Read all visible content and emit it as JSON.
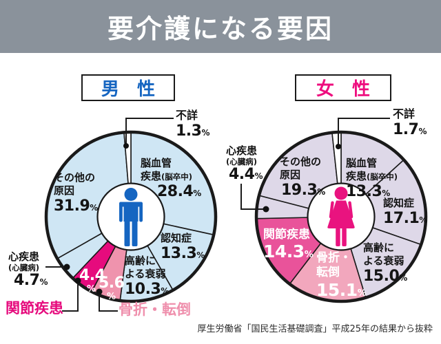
{
  "page": {
    "title": "要介護になる要因",
    "source": "厚生労働省「国民生活基礎調査」平成25年の結果から抜粋",
    "unit": "%"
  },
  "male": {
    "header": "男　性"
  },
  "female": {
    "header": "女　性"
  },
  "colors": {
    "banner_gray": "#8a929b",
    "male_accent": "#1565c1",
    "female_accent": "#ee0d7e",
    "male_slice": "#cfe6f4",
    "female_slice": "#ded8e8",
    "male_joint_highlight": "#e60b7d",
    "male_fracture_highlight": "#ef93ad",
    "female_joint_highlight": "#e9539a",
    "female_fracture_highlight": "#f2a7bd",
    "outline": "#1a1a1a"
  },
  "chart_data": [
    {
      "type": "pie",
      "title": "男性",
      "donut": true,
      "start_angle": "top",
      "direction": "clockwise",
      "unit": "%",
      "segments": [
        {
          "label": "脳血管疾患(脳卒中)",
          "label_lines": "脳血管\n疾患",
          "label_paren": "(脳卒中)",
          "value": 28.4,
          "value_str": "28.4",
          "color": "#cfe6f4"
        },
        {
          "label": "認知症",
          "label_lines": "認知症",
          "value": 13.3,
          "value_str": "13.3",
          "color": "#cfe6f4"
        },
        {
          "label": "高齢による衰弱",
          "label_lines": "高齢に\nよる衰弱",
          "value": 10.3,
          "value_str": "10.3",
          "color": "#cfe6f4"
        },
        {
          "label": "骨折・転倒",
          "label_lines": "骨折・転倒",
          "value": 5.6,
          "value_str": "5.6",
          "color": "#ef93ad"
        },
        {
          "label": "関節疾患",
          "label_lines": "関節疾患",
          "value": 4.4,
          "value_str": "4.4",
          "color": "#e60b7d"
        },
        {
          "label": "心疾患(心臓病)",
          "label_lines": "心疾患",
          "label_paren": "(心臓病)",
          "value": 4.7,
          "value_str": "4.7",
          "color": "#cfe6f4"
        },
        {
          "label": "その他の原因",
          "label_lines": "その他の\n原因",
          "value": 31.9,
          "value_str": "31.9",
          "color": "#cfe6f4"
        },
        {
          "label": "不詳",
          "label_lines": "不詳",
          "value": 1.3,
          "value_str": "1.3",
          "color": "#ffffff"
        }
      ]
    },
    {
      "type": "pie",
      "title": "女性",
      "donut": true,
      "start_angle": "top",
      "direction": "clockwise",
      "unit": "%",
      "segments": [
        {
          "label": "脳血管疾患(脳卒中)",
          "label_lines": "脳血管\n疾患",
          "label_paren": "(脳卒中)",
          "value": 13.3,
          "value_str": "13.3",
          "color": "#ded8e8"
        },
        {
          "label": "認知症",
          "label_lines": "認知症",
          "value": 17.1,
          "value_str": "17.1",
          "color": "#ded8e8"
        },
        {
          "label": "高齢による衰弱",
          "label_lines": "高齢に\nよる衰弱",
          "value": 15.0,
          "value_str": "15.0",
          "color": "#ded8e8"
        },
        {
          "label": "骨折・転倒",
          "label_lines": "骨折・\n転倒",
          "value": 15.1,
          "value_str": "15.1",
          "color": "#f2a7bd"
        },
        {
          "label": "関節疾患",
          "label_lines": "関節疾患",
          "value": 14.3,
          "value_str": "14.3",
          "color": "#e9539a"
        },
        {
          "label": "心疾患(心臓病)",
          "label_lines": "心疾患",
          "label_paren": "(心臓病)",
          "value": 4.4,
          "value_str": "4.4",
          "color": "#ded8e8"
        },
        {
          "label": "その他の原因",
          "label_lines": "その他の\n原因",
          "value": 19.3,
          "value_str": "19.3",
          "color": "#ded8e8"
        },
        {
          "label": "不詳",
          "label_lines": "不詳",
          "value": 1.7,
          "value_str": "1.7",
          "color": "#ffffff"
        }
      ]
    }
  ]
}
